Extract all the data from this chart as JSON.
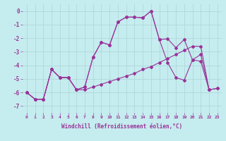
{
  "xlabel": "Windchill (Refroidissement éolien,°C)",
  "background_color": "#c5ecee",
  "line_color": "#993399",
  "grid_color": "#b0d8da",
  "xlim": [
    -0.5,
    23.5
  ],
  "ylim": [
    -7.5,
    0.5
  ],
  "xticks": [
    0,
    1,
    2,
    3,
    4,
    5,
    6,
    7,
    8,
    9,
    10,
    11,
    12,
    13,
    14,
    15,
    16,
    17,
    18,
    19,
    20,
    21,
    22,
    23
  ],
  "yticks": [
    0,
    -1,
    -2,
    -3,
    -4,
    -5,
    -6,
    -7
  ],
  "series_a_x": [
    0,
    1,
    2,
    3,
    4,
    5,
    6,
    7,
    8,
    9,
    10,
    11,
    12,
    13,
    14,
    15,
    16,
    17,
    18,
    19,
    20,
    21,
    22
  ],
  "series_a_y": [
    -6.0,
    -6.5,
    -6.5,
    -4.3,
    -4.9,
    -4.9,
    -5.8,
    -5.6,
    -3.4,
    -2.3,
    -2.5,
    -0.8,
    -0.45,
    -0.45,
    -0.5,
    0.0,
    -2.1,
    -2.05,
    -2.7,
    -2.1,
    -3.6,
    -3.2,
    -5.8
  ],
  "series_b_x": [
    0,
    1,
    2,
    3,
    4,
    5,
    6,
    7,
    8,
    9,
    10,
    11,
    12,
    13,
    14,
    15,
    16,
    17,
    18,
    19,
    20,
    21,
    22,
    23
  ],
  "series_b_y": [
    -6.0,
    -6.5,
    -6.5,
    -4.3,
    -4.9,
    -4.9,
    -5.8,
    -5.8,
    -5.6,
    -5.4,
    -5.2,
    -5.0,
    -4.8,
    -4.6,
    -4.3,
    -4.1,
    -3.8,
    -3.5,
    -3.2,
    -2.9,
    -2.6,
    -2.6,
    -5.8,
    -5.7
  ],
  "series_c_x": [
    0,
    1,
    2,
    3,
    4,
    5,
    6,
    7,
    8,
    9,
    10,
    11,
    12,
    13,
    14,
    15,
    16,
    17,
    18,
    19,
    20,
    21,
    22,
    23
  ],
  "series_c_y": [
    -6.0,
    -6.5,
    -6.5,
    -4.3,
    -4.9,
    -4.9,
    -5.8,
    -5.6,
    -3.4,
    -2.3,
    -2.5,
    -0.8,
    -0.45,
    -0.45,
    -0.5,
    0.0,
    -2.1,
    -3.8,
    -4.9,
    -5.1,
    -3.6,
    -3.7,
    -5.8,
    -5.7
  ]
}
